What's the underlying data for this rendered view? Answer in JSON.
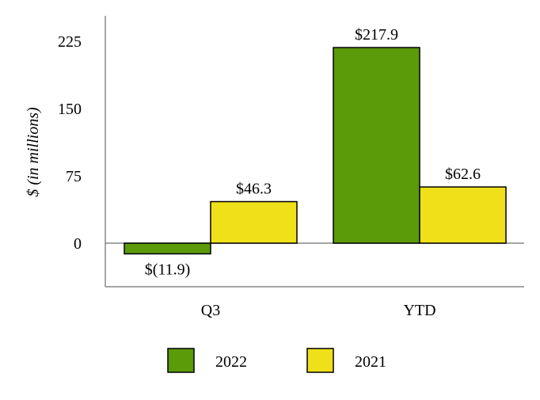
{
  "chart_data": {
    "type": "bar",
    "title": "",
    "xlabel": "",
    "ylabel": "$ (in millions)",
    "categories": [
      "Q3",
      "YTD"
    ],
    "series": [
      {
        "name": "2022",
        "values": [
          -11.9,
          217.9
        ],
        "labels": [
          "$(11.9)",
          "$217.9"
        ],
        "color": "#5b9a08"
      },
      {
        "name": "2021",
        "values": [
          46.3,
          62.6
        ],
        "labels": [
          "$46.3",
          "$62.6"
        ],
        "color": "#efe01a"
      }
    ],
    "yticks": [
      0,
      75,
      150,
      225
    ],
    "ytick_labels": [
      "0",
      "75",
      "150",
      "225"
    ],
    "ylim": [
      -48,
      250
    ],
    "grid": false,
    "legend": "bottom-center"
  }
}
